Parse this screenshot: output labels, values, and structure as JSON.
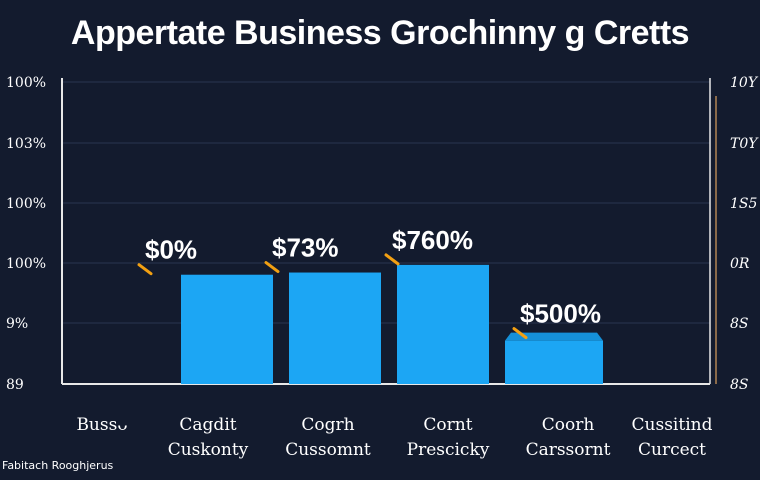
{
  "chart_data": {
    "type": "bar",
    "title": "Appertate Business Grochinny g Cretts",
    "left_ticks": [
      "100%",
      "103%",
      "100%",
      "100%",
      "9%",
      "89"
    ],
    "right_ticks": [
      "10Y",
      "T0Y",
      "1S5",
      "0R",
      "8S",
      "8S"
    ],
    "categories": [
      {
        "line1": "Bussᴗ",
        "line2": ""
      },
      {
        "line1": "Cagdit",
        "line2": "Cuskonty"
      },
      {
        "line1": "Cogrh",
        "line2": "Cussomnt"
      },
      {
        "line1": "Cornt",
        "line2": "Prescicky"
      },
      {
        "line1": "Coorh",
        "line2": "Carssornt"
      },
      {
        "line1": "Cussitind",
        "line2": "Curcect"
      }
    ],
    "values": [
      null,
      100,
      102,
      109,
      null,
      null
    ],
    "shelf_value": 47,
    "ylim": [
      0,
      280
    ],
    "data_labels": [
      "",
      "$0%",
      "$73%",
      "$760%",
      "$500%",
      ""
    ],
    "footnote": "Fabitach Rooghjerus",
    "colors": {
      "background": "#131b2e",
      "bar": "#1ca6f4",
      "bar_side": "#1590d8",
      "axis": "#e8e8e8",
      "grid": "#2a3450",
      "right_axis": "#8a6a4a",
      "marker": "#f2a012"
    }
  }
}
